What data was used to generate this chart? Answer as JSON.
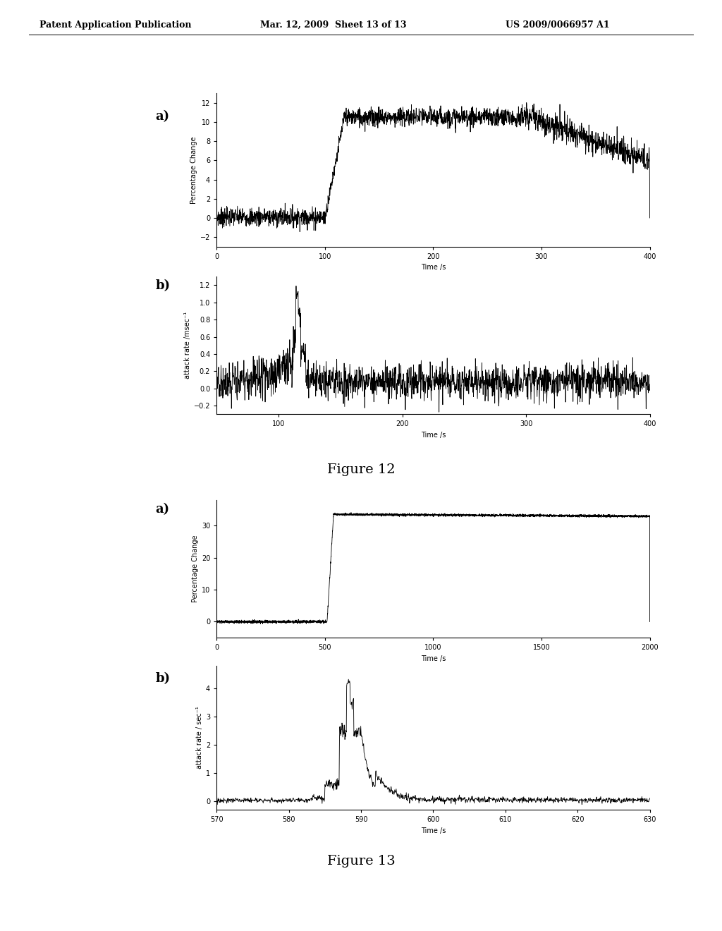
{
  "header_left": "Patent Application Publication",
  "header_mid": "Mar. 12, 2009  Sheet 13 of 13",
  "header_right": "US 2009/0066957 A1",
  "fig12_label": "Figure 12",
  "fig13_label": "Figure 13",
  "fig12a": {
    "label": "a)",
    "xlabel": "Time /s",
    "ylabel": "Percentage Change",
    "xlim": [
      0,
      400
    ],
    "ylim": [
      -3,
      13
    ],
    "xticks": [
      0,
      100,
      200,
      300,
      400
    ],
    "yticks": [
      -2,
      0,
      2,
      4,
      6,
      8,
      10,
      12
    ],
    "step_x": 115,
    "baseline_mean": 0.1,
    "baseline_noise": 0.55,
    "plateau_mean": 10.5,
    "plateau_noise": 0.55
  },
  "fig12b": {
    "label": "b)",
    "xlabel": "Time /s",
    "ylabel": "attack rate /msec⁻¹",
    "xlim": [
      50,
      400
    ],
    "ylim": [
      -0.3,
      1.3
    ],
    "xticks": [
      100,
      200,
      300,
      400
    ],
    "yticks": [
      -0.2,
      0.0,
      0.2,
      0.4,
      0.6,
      0.8,
      1.0,
      1.2
    ],
    "peak_x": 116,
    "peak_y": 1.15
  },
  "fig13a": {
    "label": "a)",
    "xlabel": "Time /s",
    "ylabel": "Percentage Change",
    "xlim": [
      0,
      2000
    ],
    "ylim": [
      -5,
      38
    ],
    "xticks": [
      0,
      500,
      1000,
      1500,
      2000
    ],
    "yticks": [
      0,
      10,
      20,
      30
    ],
    "step_x": 530,
    "baseline_mean": 0.0,
    "baseline_noise": 0.25,
    "plateau_mean": 33.5,
    "plateau_noise": 0.2
  },
  "fig13b": {
    "label": "b)",
    "xlabel": "Time /s",
    "ylabel": "attack rate / sec⁻¹",
    "xlim": [
      570,
      630
    ],
    "ylim": [
      -0.3,
      4.8
    ],
    "xticks": [
      570,
      580,
      590,
      600,
      610,
      620,
      630
    ],
    "yticks": [
      0,
      1,
      2,
      3,
      4
    ],
    "peak_x": 588,
    "peak_y": 4.3
  },
  "line_color": "#000000",
  "background": "#ffffff",
  "font_size_header": 9,
  "font_size_tick": 7,
  "font_size_axis_label": 7,
  "font_size_figure_label": 14,
  "font_size_subplot_label": 13
}
